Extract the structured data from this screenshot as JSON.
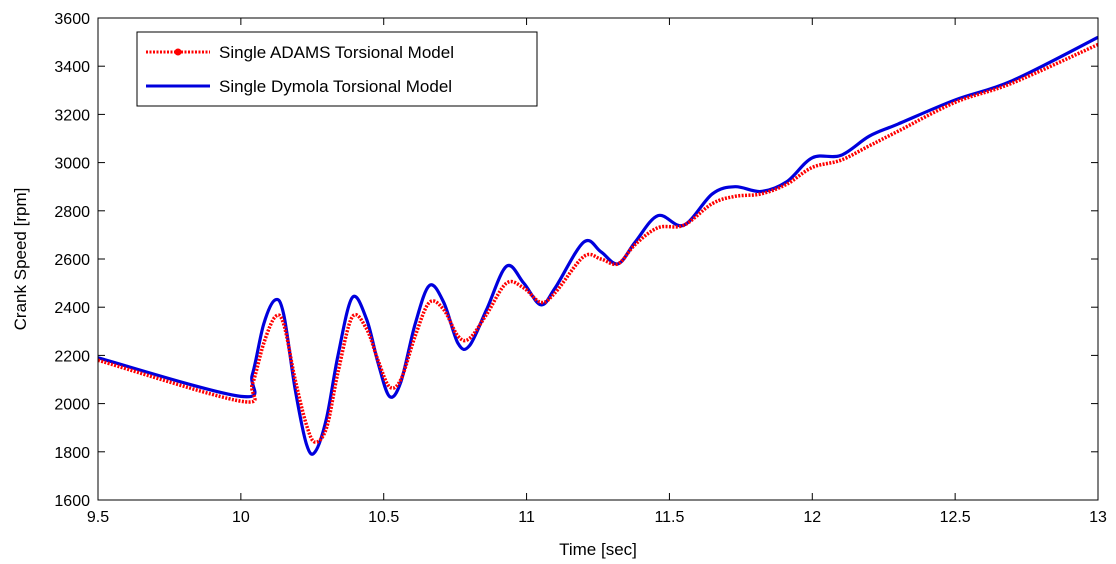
{
  "chart_data": {
    "type": "line",
    "title": "",
    "xlabel": "Time [sec]",
    "ylabel": "Crank Speed [rpm]",
    "xlim": [
      9.5,
      13
    ],
    "ylim": [
      1600,
      3600
    ],
    "xticks": [
      9.5,
      10,
      10.5,
      11,
      11.5,
      12,
      12.5,
      13
    ],
    "xtick_labels": [
      "9.5",
      "10",
      "10.5",
      "11",
      "11.5",
      "12",
      "12.5",
      "13"
    ],
    "yticks": [
      1600,
      1800,
      2000,
      2200,
      2400,
      2600,
      2800,
      3000,
      3200,
      3400,
      3600
    ],
    "ytick_labels": [
      "1600",
      "1800",
      "2000",
      "2200",
      "2400",
      "2600",
      "2800",
      "3000",
      "3200",
      "3400",
      "3600"
    ],
    "grid": false,
    "legend_position": "top-left",
    "series": [
      {
        "name": "Single ADAMS Torsional Model",
        "color": "#ff0000",
        "style": "dotted-marker",
        "x": [
          9.5,
          10.0,
          10.04,
          10.08,
          10.12,
          10.15,
          10.19,
          10.23,
          10.26,
          10.3,
          10.34,
          10.39,
          10.44,
          10.48,
          10.52,
          10.56,
          10.61,
          10.66,
          10.71,
          10.76,
          10.8,
          10.86,
          10.93,
          10.99,
          11.05,
          11.1,
          11.2,
          11.26,
          11.32,
          11.38,
          11.46,
          11.55,
          11.65,
          11.73,
          11.82,
          11.91,
          12.0,
          12.1,
          12.2,
          12.3,
          12.5,
          12.7,
          13.0
        ],
        "y": [
          2180,
          2010,
          2080,
          2250,
          2360,
          2330,
          2100,
          1910,
          1840,
          1900,
          2130,
          2360,
          2310,
          2180,
          2070,
          2100,
          2280,
          2420,
          2390,
          2280,
          2270,
          2370,
          2500,
          2480,
          2420,
          2460,
          2610,
          2600,
          2580,
          2660,
          2730,
          2740,
          2830,
          2860,
          2870,
          2910,
          2980,
          3010,
          3070,
          3130,
          3250,
          3330,
          3490
        ]
      },
      {
        "name": "Single Dymola Torsional Model",
        "color": "#0000dd",
        "style": "solid",
        "x": [
          9.5,
          10.0,
          10.04,
          10.08,
          10.12,
          10.15,
          10.19,
          10.23,
          10.26,
          10.3,
          10.34,
          10.39,
          10.44,
          10.48,
          10.52,
          10.56,
          10.61,
          10.66,
          10.71,
          10.76,
          10.8,
          10.86,
          10.93,
          10.99,
          11.05,
          11.1,
          11.2,
          11.26,
          11.32,
          11.38,
          11.46,
          11.55,
          11.65,
          11.73,
          11.82,
          11.91,
          12.0,
          12.1,
          12.2,
          12.3,
          12.5,
          12.7,
          13.0
        ],
        "y": [
          2190,
          2030,
          2120,
          2330,
          2430,
          2370,
          2060,
          1830,
          1800,
          1940,
          2200,
          2440,
          2350,
          2170,
          2030,
          2090,
          2330,
          2490,
          2420,
          2250,
          2240,
          2390,
          2570,
          2500,
          2410,
          2480,
          2670,
          2630,
          2580,
          2670,
          2780,
          2740,
          2870,
          2900,
          2880,
          2920,
          3020,
          3030,
          3110,
          3160,
          3260,
          3340,
          3520
        ]
      }
    ]
  }
}
